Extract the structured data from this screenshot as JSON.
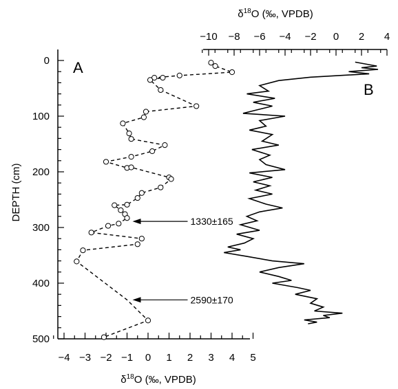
{
  "chart_data": [
    {
      "panel": "A",
      "type": "line",
      "xlabel": "δ18O (‰, VPDB)",
      "ylabel": "DEPTH (cm)",
      "xlim": [
        -4.5,
        5
      ],
      "ylim": [
        500,
        -10
      ],
      "x_ticks": [
        -4,
        -3,
        -2,
        -1,
        0,
        1,
        2,
        3,
        4,
        5
      ],
      "y_ticks": [
        0,
        100,
        200,
        300,
        400,
        500
      ],
      "line_style": "dashed",
      "marker": "open-circle",
      "points": [
        {
          "x": 3.0,
          "y": 4
        },
        {
          "x": 3.2,
          "y": 10
        },
        {
          "x": 4.0,
          "y": 21
        },
        {
          "x": 1.5,
          "y": 27
        },
        {
          "x": 0.3,
          "y": 31
        },
        {
          "x": 0.7,
          "y": 31
        },
        {
          "x": 0.1,
          "y": 35
        },
        {
          "x": 0.6,
          "y": 53
        },
        {
          "x": 2.3,
          "y": 82
        },
        {
          "x": -0.1,
          "y": 92
        },
        {
          "x": -0.2,
          "y": 102
        },
        {
          "x": -1.2,
          "y": 113
        },
        {
          "x": -0.9,
          "y": 131
        },
        {
          "x": -0.8,
          "y": 141
        },
        {
          "x": 0.8,
          "y": 152
        },
        {
          "x": 0.2,
          "y": 163
        },
        {
          "x": -0.8,
          "y": 173
        },
        {
          "x": -2.0,
          "y": 182
        },
        {
          "x": -1.0,
          "y": 193
        },
        {
          "x": -0.8,
          "y": 192
        },
        {
          "x": 1.0,
          "y": 210
        },
        {
          "x": 1.1,
          "y": 213
        },
        {
          "x": 0.6,
          "y": 228
        },
        {
          "x": -0.3,
          "y": 238
        },
        {
          "x": -0.5,
          "y": 247
        },
        {
          "x": -1.0,
          "y": 259
        },
        {
          "x": -1.6,
          "y": 260
        },
        {
          "x": -1.3,
          "y": 269
        },
        {
          "x": -1.1,
          "y": 276
        },
        {
          "x": -1.0,
          "y": 283
        },
        {
          "x": -1.4,
          "y": 293
        },
        {
          "x": -1.9,
          "y": 297
        },
        {
          "x": -2.7,
          "y": 309
        },
        {
          "x": -0.3,
          "y": 320
        },
        {
          "x": -0.5,
          "y": 330
        },
        {
          "x": -3.1,
          "y": 341
        },
        {
          "x": -3.4,
          "y": 361
        },
        {
          "x": -1.0,
          "y": 430
        },
        {
          "x": 0.0,
          "y": 467
        },
        {
          "x": -2.1,
          "y": 497
        }
      ],
      "annotations": [
        {
          "text": "1330±165",
          "x": -1.0,
          "y": 289
        },
        {
          "text": "2590±170",
          "x": -1.0,
          "y": 430
        }
      ]
    },
    {
      "panel": "B",
      "type": "line",
      "xlabel": "δ18O (‰, VPDB)",
      "xlim": [
        -12,
        4.5
      ],
      "x_ticks": [
        -10,
        -8,
        -6,
        -4,
        -2,
        0,
        2,
        4
      ],
      "y_axis_shared_with": "A",
      "line_style": "solid",
      "points": [
        {
          "x": 1.5,
          "y": 3
        },
        {
          "x": 3.2,
          "y": 10
        },
        {
          "x": 2.0,
          "y": 13
        },
        {
          "x": 3.3,
          "y": 16
        },
        {
          "x": 1.0,
          "y": 20
        },
        {
          "x": 2.6,
          "y": 24
        },
        {
          "x": -2.0,
          "y": 30
        },
        {
          "x": -4.5,
          "y": 36
        },
        {
          "x": -6.0,
          "y": 45
        },
        {
          "x": -5.3,
          "y": 55
        },
        {
          "x": -7.0,
          "y": 60
        },
        {
          "x": -4.8,
          "y": 68
        },
        {
          "x": -6.5,
          "y": 75
        },
        {
          "x": -5.0,
          "y": 82
        },
        {
          "x": -7.3,
          "y": 95
        },
        {
          "x": -4.0,
          "y": 100
        },
        {
          "x": -6.0,
          "y": 108
        },
        {
          "x": -5.5,
          "y": 118
        },
        {
          "x": -6.8,
          "y": 125
        },
        {
          "x": -5.0,
          "y": 133
        },
        {
          "x": -5.8,
          "y": 145
        },
        {
          "x": -4.5,
          "y": 152
        },
        {
          "x": -6.6,
          "y": 160
        },
        {
          "x": -5.2,
          "y": 170
        },
        {
          "x": -6.0,
          "y": 178
        },
        {
          "x": -5.5,
          "y": 187
        },
        {
          "x": -4.0,
          "y": 196
        },
        {
          "x": -6.8,
          "y": 202
        },
        {
          "x": -5.0,
          "y": 210
        },
        {
          "x": -6.5,
          "y": 218
        },
        {
          "x": -5.2,
          "y": 225
        },
        {
          "x": -6.3,
          "y": 233
        },
        {
          "x": -5.0,
          "y": 240
        },
        {
          "x": -6.8,
          "y": 248
        },
        {
          "x": -5.5,
          "y": 258
        },
        {
          "x": -4.2,
          "y": 265
        },
        {
          "x": -6.0,
          "y": 272
        },
        {
          "x": -7.0,
          "y": 280
        },
        {
          "x": -6.2,
          "y": 288
        },
        {
          "x": -7.5,
          "y": 295
        },
        {
          "x": -6.0,
          "y": 305
        },
        {
          "x": -7.8,
          "y": 312
        },
        {
          "x": -6.5,
          "y": 320
        },
        {
          "x": -7.2,
          "y": 328
        },
        {
          "x": -8.5,
          "y": 335
        },
        {
          "x": -7.5,
          "y": 340
        },
        {
          "x": -8.8,
          "y": 345
        },
        {
          "x": -7.0,
          "y": 352
        },
        {
          "x": -5.0,
          "y": 360
        },
        {
          "x": -2.5,
          "y": 365
        },
        {
          "x": -4.5,
          "y": 372
        },
        {
          "x": -6.0,
          "y": 380
        },
        {
          "x": -4.5,
          "y": 388
        },
        {
          "x": -3.5,
          "y": 395
        },
        {
          "x": -5.0,
          "y": 400
        },
        {
          "x": -3.0,
          "y": 408
        },
        {
          "x": -2.0,
          "y": 413
        },
        {
          "x": -3.2,
          "y": 420
        },
        {
          "x": -1.5,
          "y": 428
        },
        {
          "x": -2.0,
          "y": 436
        },
        {
          "x": -1.0,
          "y": 443
        },
        {
          "x": -1.7,
          "y": 450
        },
        {
          "x": 0.5,
          "y": 454
        },
        {
          "x": -1.0,
          "y": 458
        },
        {
          "x": -0.5,
          "y": 462
        },
        {
          "x": -2.5,
          "y": 466
        },
        {
          "x": -1.5,
          "y": 470
        },
        {
          "x": -2.2,
          "y": 473
        }
      ]
    }
  ],
  "labels": {
    "panel_a": "A",
    "panel_b": "B",
    "y_title": "DEPTH (cm)",
    "top_axis_title": {
      "prefix": "δ",
      "sup": "18",
      "suffix": "O (‰, VPDB)"
    },
    "bottom_axis_title": {
      "prefix": "δ",
      "sup": "18",
      "suffix": "O (‰, VPDB)"
    }
  }
}
